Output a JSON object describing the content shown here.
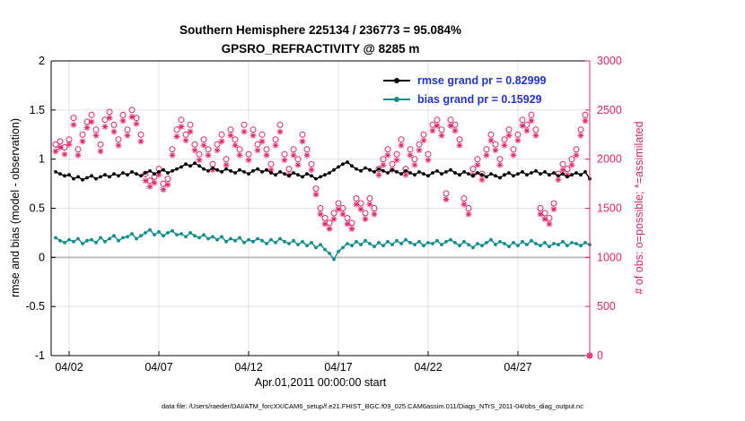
{
  "figure": {
    "title_line1": "Southern Hemisphere 225134 / 236773 = 95.084%",
    "title_line2": "GPSRO_REFRACTIVITY @ 8285 m",
    "xlabel": "Apr.01,2011 00:00:00 start",
    "ylabel_left": "rmse and bias (model - observation)",
    "ylabel_right": "# of obs: o=possible; *=assimilated",
    "caption": "data file: /Users/raeder/DAI/ATM_forcXX/CAM6_setup/f.e21.FHIST_BGC.f09_025.CAM6assim.011/Diags_NTrS_2011-04/obs_diag_output.nc"
  },
  "colors": {
    "pink": "#e0246a",
    "teal": "#0e8d8d",
    "black": "#000000",
    "legend_text": "#2233cc",
    "grid": "#e2e2e2",
    "zero_line": "#bdbdbd"
  },
  "legend": [
    {
      "label": "rmse grand pr = 0.82999",
      "color": "#000000"
    },
    {
      "label": "bias grand pr = 0.15929",
      "color": "#0e8d8d"
    }
  ],
  "chart_data": {
    "type": "line",
    "title": "Southern Hemisphere 225134 / 236773 = 95.084% — GPSRO_REFRACTIVITY @ 8285 m",
    "xlabel": "Apr.01,2011 00:00:00 start",
    "ylabel_left": "rmse and bias (model - observation)",
    "ylabel_right": "# of obs: o=possible; *=assimilated",
    "xlim": [
      0,
      30
    ],
    "ylim_left": [
      -1,
      2
    ],
    "ylim_right": [
      0,
      3000
    ],
    "grid": true,
    "x_start_day": 0.25,
    "x_step": 0.25,
    "x_ticks": [
      {
        "day": 1,
        "label": "04/02"
      },
      {
        "day": 6,
        "label": "04/07"
      },
      {
        "day": 11,
        "label": "04/12"
      },
      {
        "day": 16,
        "label": "04/17"
      },
      {
        "day": 21,
        "label": "04/22"
      },
      {
        "day": 26,
        "label": "04/27"
      }
    ],
    "y_ticks_left": [
      {
        "v": 2,
        "label": "2"
      },
      {
        "v": 1.5,
        "label": "1.5"
      },
      {
        "v": 1,
        "label": "1"
      },
      {
        "v": 0.5,
        "label": "0.5"
      },
      {
        "v": 0,
        "label": "0"
      },
      {
        "v": -0.5,
        "label": "-0.5"
      },
      {
        "v": -1,
        "label": "-1"
      }
    ],
    "y_ticks_right": [
      {
        "v": 3000,
        "label": "3000"
      },
      {
        "v": 2500,
        "label": "2500"
      },
      {
        "v": 2000,
        "label": "2000"
      },
      {
        "v": 1500,
        "label": "1500"
      },
      {
        "v": 1000,
        "label": "1000"
      },
      {
        "v": 500,
        "label": "500"
      },
      {
        "v": 0,
        "label": "0"
      }
    ],
    "series": [
      {
        "name": "rmse",
        "grand_value": 0.82999,
        "axis": "left",
        "color": "#000000",
        "marker": "dot",
        "line": true,
        "values": [
          0.87,
          0.85,
          0.83,
          0.84,
          0.8,
          0.82,
          0.79,
          0.81,
          0.83,
          0.8,
          0.82,
          0.84,
          0.82,
          0.85,
          0.83,
          0.86,
          0.84,
          0.87,
          0.85,
          0.83,
          0.86,
          0.88,
          0.85,
          0.87,
          0.89,
          0.86,
          0.88,
          0.9,
          0.92,
          0.95,
          0.93,
          0.96,
          0.93,
          0.9,
          0.88,
          0.91,
          0.89,
          0.87,
          0.9,
          0.88,
          0.86,
          0.89,
          0.87,
          0.85,
          0.88,
          0.9,
          0.87,
          0.89,
          0.86,
          0.84,
          0.87,
          0.85,
          0.83,
          0.86,
          0.84,
          0.82,
          0.85,
          0.83,
          0.8,
          0.82,
          0.84,
          0.86,
          0.89,
          0.92,
          0.95,
          0.97,
          0.93,
          0.9,
          0.88,
          0.91,
          0.89,
          0.87,
          0.9,
          0.88,
          0.86,
          0.89,
          0.87,
          0.85,
          0.88,
          0.86,
          0.84,
          0.87,
          0.85,
          0.83,
          0.86,
          0.88,
          0.85,
          0.87,
          0.89,
          0.86,
          0.84,
          0.87,
          0.85,
          0.83,
          0.86,
          0.84,
          0.82,
          0.85,
          0.83,
          0.81,
          0.84,
          0.86,
          0.83,
          0.85,
          0.87,
          0.84,
          0.86,
          0.88,
          0.85,
          0.87,
          0.84,
          0.86,
          0.83,
          0.85,
          0.82,
          0.84,
          0.86,
          0.84,
          0.87,
          0.8
        ]
      },
      {
        "name": "bias",
        "grand_value": 0.15929,
        "axis": "left",
        "color": "#0e8d8d",
        "marker": "dot",
        "line": true,
        "values": [
          0.2,
          0.17,
          0.15,
          0.18,
          0.16,
          0.19,
          0.14,
          0.17,
          0.18,
          0.15,
          0.2,
          0.16,
          0.19,
          0.22,
          0.17,
          0.2,
          0.21,
          0.24,
          0.19,
          0.22,
          0.25,
          0.28,
          0.23,
          0.26,
          0.22,
          0.25,
          0.27,
          0.23,
          0.24,
          0.21,
          0.25,
          0.22,
          0.2,
          0.23,
          0.19,
          0.21,
          0.18,
          0.21,
          0.16,
          0.19,
          0.17,
          0.2,
          0.15,
          0.18,
          0.16,
          0.19,
          0.17,
          0.14,
          0.18,
          0.15,
          0.19,
          0.16,
          0.14,
          0.17,
          0.13,
          0.16,
          0.12,
          0.15,
          0.1,
          0.13,
          0.08,
          0.04,
          -0.02,
          0.06,
          0.1,
          0.14,
          0.12,
          0.16,
          0.13,
          0.17,
          0.14,
          0.11,
          0.15,
          0.12,
          0.16,
          0.13,
          0.17,
          0.14,
          0.18,
          0.15,
          0.13,
          0.16,
          0.12,
          0.15,
          0.14,
          0.17,
          0.13,
          0.16,
          0.18,
          0.15,
          0.12,
          0.16,
          0.13,
          0.1,
          0.14,
          0.12,
          0.15,
          0.18,
          0.13,
          0.16,
          0.14,
          0.11,
          0.15,
          0.12,
          0.16,
          0.13,
          0.17,
          0.14,
          0.12,
          0.15,
          0.11,
          0.14,
          0.13,
          0.16,
          0.12,
          0.15,
          0.14,
          0.12,
          0.15,
          0.13
        ]
      },
      {
        "name": "possible",
        "axis": "right",
        "color": "#e0246a",
        "marker": "circle",
        "line": false,
        "values": [
          2150,
          2180,
          2120,
          2200,
          2420,
          2100,
          2250,
          2380,
          2450,
          2300,
          2150,
          2400,
          2480,
          2350,
          2200,
          2450,
          2300,
          2500,
          2420,
          2250,
          1850,
          1780,
          1820,
          1900,
          1750,
          1800,
          2100,
          2300,
          2400,
          2250,
          2350,
          2150,
          2050,
          2200,
          2100,
          1950,
          2150,
          2250,
          2000,
          2300,
          2200,
          2100,
          2350,
          2050,
          2300,
          2150,
          2250,
          2100,
          1950,
          2200,
          2350,
          2050,
          1900,
          2100,
          2000,
          2250,
          2100,
          1950,
          1700,
          1500,
          1400,
          1350,
          1450,
          1550,
          1500,
          1400,
          1350,
          1600,
          1550,
          1450,
          1600,
          1500,
          1900,
          2000,
          2100,
          1950,
          2050,
          2200,
          1900,
          2100,
          2000,
          2150,
          2250,
          2050,
          2350,
          2400,
          2300,
          1650,
          2400,
          2350,
          2200,
          1600,
          1500,
          1900,
          2000,
          1850,
          2100,
          2250,
          2150,
          2000,
          2200,
          2300,
          2100,
          2250,
          2400,
          2350,
          2450,
          2300,
          1500,
          1450,
          1400,
          1550,
          1850,
          1950,
          1900,
          2000,
          2100,
          2300,
          2450,
          0
        ]
      },
      {
        "name": "assimilated",
        "axis": "right",
        "color": "#e0246a",
        "marker": "star",
        "line": false,
        "values": [
          2080,
          2120,
          2050,
          2150,
          2350,
          2040,
          2180,
          2320,
          2380,
          2240,
          2080,
          2330,
          2420,
          2280,
          2140,
          2390,
          2240,
          2430,
          2360,
          2180,
          1780,
          1720,
          1760,
          1840,
          1690,
          1740,
          2040,
          2230,
          2330,
          2190,
          2280,
          2090,
          1990,
          2140,
          2040,
          1890,
          2090,
          2180,
          1940,
          2240,
          2140,
          2040,
          2280,
          1990,
          2240,
          2090,
          2180,
          2040,
          1890,
          2140,
          2280,
          1990,
          1840,
          2040,
          1940,
          2180,
          2040,
          1890,
          1640,
          1440,
          1340,
          1290,
          1390,
          1490,
          1440,
          1340,
          1290,
          1540,
          1490,
          1390,
          1540,
          1440,
          1840,
          1940,
          2040,
          1890,
          1990,
          2140,
          1840,
          2040,
          1940,
          2090,
          2190,
          1990,
          2290,
          2340,
          2240,
          1590,
          2340,
          2290,
          2140,
          1540,
          1440,
          1840,
          1940,
          1790,
          2040,
          2190,
          2090,
          1940,
          2140,
          2240,
          2040,
          2190,
          2340,
          2290,
          2390,
          2240,
          1440,
          1390,
          1340,
          1490,
          1790,
          1890,
          1840,
          1940,
          2040,
          2240,
          2390,
          0
        ]
      }
    ]
  }
}
